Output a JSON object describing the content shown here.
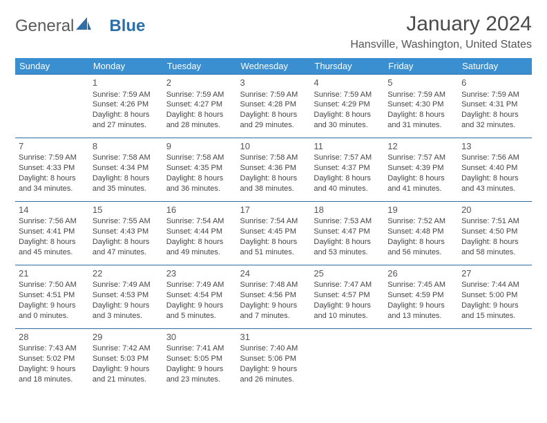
{
  "brand": {
    "first": "General",
    "second": "Blue"
  },
  "title": "January 2024",
  "location": "Hansville, Washington, United States",
  "colors": {
    "header_bg": "#3a8fd0",
    "header_text": "#ffffff",
    "row_border": "#2c6aa0",
    "brand_blue": "#2f6fa7",
    "text": "#444444"
  },
  "weekdays": [
    "Sunday",
    "Monday",
    "Tuesday",
    "Wednesday",
    "Thursday",
    "Friday",
    "Saturday"
  ],
  "weeks": [
    [
      null,
      {
        "n": "1",
        "sr": "Sunrise: 7:59 AM",
        "ss": "Sunset: 4:26 PM",
        "dl": "Daylight: 8 hours and 27 minutes."
      },
      {
        "n": "2",
        "sr": "Sunrise: 7:59 AM",
        "ss": "Sunset: 4:27 PM",
        "dl": "Daylight: 8 hours and 28 minutes."
      },
      {
        "n": "3",
        "sr": "Sunrise: 7:59 AM",
        "ss": "Sunset: 4:28 PM",
        "dl": "Daylight: 8 hours and 29 minutes."
      },
      {
        "n": "4",
        "sr": "Sunrise: 7:59 AM",
        "ss": "Sunset: 4:29 PM",
        "dl": "Daylight: 8 hours and 30 minutes."
      },
      {
        "n": "5",
        "sr": "Sunrise: 7:59 AM",
        "ss": "Sunset: 4:30 PM",
        "dl": "Daylight: 8 hours and 31 minutes."
      },
      {
        "n": "6",
        "sr": "Sunrise: 7:59 AM",
        "ss": "Sunset: 4:31 PM",
        "dl": "Daylight: 8 hours and 32 minutes."
      }
    ],
    [
      {
        "n": "7",
        "sr": "Sunrise: 7:59 AM",
        "ss": "Sunset: 4:33 PM",
        "dl": "Daylight: 8 hours and 34 minutes."
      },
      {
        "n": "8",
        "sr": "Sunrise: 7:58 AM",
        "ss": "Sunset: 4:34 PM",
        "dl": "Daylight: 8 hours and 35 minutes."
      },
      {
        "n": "9",
        "sr": "Sunrise: 7:58 AM",
        "ss": "Sunset: 4:35 PM",
        "dl": "Daylight: 8 hours and 36 minutes."
      },
      {
        "n": "10",
        "sr": "Sunrise: 7:58 AM",
        "ss": "Sunset: 4:36 PM",
        "dl": "Daylight: 8 hours and 38 minutes."
      },
      {
        "n": "11",
        "sr": "Sunrise: 7:57 AM",
        "ss": "Sunset: 4:37 PM",
        "dl": "Daylight: 8 hours and 40 minutes."
      },
      {
        "n": "12",
        "sr": "Sunrise: 7:57 AM",
        "ss": "Sunset: 4:39 PM",
        "dl": "Daylight: 8 hours and 41 minutes."
      },
      {
        "n": "13",
        "sr": "Sunrise: 7:56 AM",
        "ss": "Sunset: 4:40 PM",
        "dl": "Daylight: 8 hours and 43 minutes."
      }
    ],
    [
      {
        "n": "14",
        "sr": "Sunrise: 7:56 AM",
        "ss": "Sunset: 4:41 PM",
        "dl": "Daylight: 8 hours and 45 minutes."
      },
      {
        "n": "15",
        "sr": "Sunrise: 7:55 AM",
        "ss": "Sunset: 4:43 PM",
        "dl": "Daylight: 8 hours and 47 minutes."
      },
      {
        "n": "16",
        "sr": "Sunrise: 7:54 AM",
        "ss": "Sunset: 4:44 PM",
        "dl": "Daylight: 8 hours and 49 minutes."
      },
      {
        "n": "17",
        "sr": "Sunrise: 7:54 AM",
        "ss": "Sunset: 4:45 PM",
        "dl": "Daylight: 8 hours and 51 minutes."
      },
      {
        "n": "18",
        "sr": "Sunrise: 7:53 AM",
        "ss": "Sunset: 4:47 PM",
        "dl": "Daylight: 8 hours and 53 minutes."
      },
      {
        "n": "19",
        "sr": "Sunrise: 7:52 AM",
        "ss": "Sunset: 4:48 PM",
        "dl": "Daylight: 8 hours and 56 minutes."
      },
      {
        "n": "20",
        "sr": "Sunrise: 7:51 AM",
        "ss": "Sunset: 4:50 PM",
        "dl": "Daylight: 8 hours and 58 minutes."
      }
    ],
    [
      {
        "n": "21",
        "sr": "Sunrise: 7:50 AM",
        "ss": "Sunset: 4:51 PM",
        "dl": "Daylight: 9 hours and 0 minutes."
      },
      {
        "n": "22",
        "sr": "Sunrise: 7:49 AM",
        "ss": "Sunset: 4:53 PM",
        "dl": "Daylight: 9 hours and 3 minutes."
      },
      {
        "n": "23",
        "sr": "Sunrise: 7:49 AM",
        "ss": "Sunset: 4:54 PM",
        "dl": "Daylight: 9 hours and 5 minutes."
      },
      {
        "n": "24",
        "sr": "Sunrise: 7:48 AM",
        "ss": "Sunset: 4:56 PM",
        "dl": "Daylight: 9 hours and 7 minutes."
      },
      {
        "n": "25",
        "sr": "Sunrise: 7:47 AM",
        "ss": "Sunset: 4:57 PM",
        "dl": "Daylight: 9 hours and 10 minutes."
      },
      {
        "n": "26",
        "sr": "Sunrise: 7:45 AM",
        "ss": "Sunset: 4:59 PM",
        "dl": "Daylight: 9 hours and 13 minutes."
      },
      {
        "n": "27",
        "sr": "Sunrise: 7:44 AM",
        "ss": "Sunset: 5:00 PM",
        "dl": "Daylight: 9 hours and 15 minutes."
      }
    ],
    [
      {
        "n": "28",
        "sr": "Sunrise: 7:43 AM",
        "ss": "Sunset: 5:02 PM",
        "dl": "Daylight: 9 hours and 18 minutes."
      },
      {
        "n": "29",
        "sr": "Sunrise: 7:42 AM",
        "ss": "Sunset: 5:03 PM",
        "dl": "Daylight: 9 hours and 21 minutes."
      },
      {
        "n": "30",
        "sr": "Sunrise: 7:41 AM",
        "ss": "Sunset: 5:05 PM",
        "dl": "Daylight: 9 hours and 23 minutes."
      },
      {
        "n": "31",
        "sr": "Sunrise: 7:40 AM",
        "ss": "Sunset: 5:06 PM",
        "dl": "Daylight: 9 hours and 26 minutes."
      },
      null,
      null,
      null
    ]
  ]
}
